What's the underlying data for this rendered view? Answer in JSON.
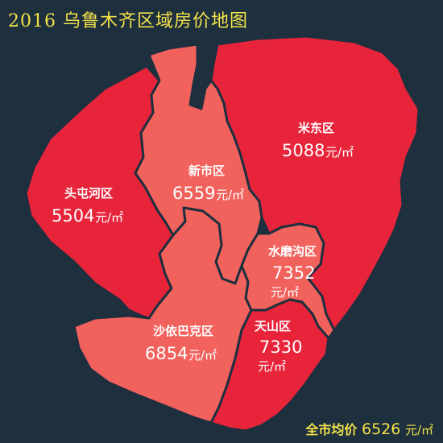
{
  "title": "2016 乌鲁木齐区域房价地图",
  "colors": {
    "background": "#1e2f3e",
    "title": "#f2e24a",
    "high_price_fill": "#e8243b",
    "low_price_fill": "#f2625d",
    "border": "#1e2f3e"
  },
  "districts": [
    {
      "name": "头屯河区",
      "price": "5504",
      "unit": "元/㎡"
    },
    {
      "name": "新市区",
      "price": "6559",
      "unit": "元/㎡"
    },
    {
      "name": "米东区",
      "price": "5088",
      "unit": "元/㎡"
    },
    {
      "name": "水磨沟区",
      "price": "7352",
      "unit": "元/㎡"
    },
    {
      "name": "沙依巴克区",
      "price": "6854",
      "unit": "元/㎡"
    },
    {
      "name": "天山区",
      "price": "7330",
      "unit": "元/㎡"
    }
  ],
  "city_average": {
    "label": "全市均价",
    "price": "6526",
    "unit": "元/㎡"
  }
}
